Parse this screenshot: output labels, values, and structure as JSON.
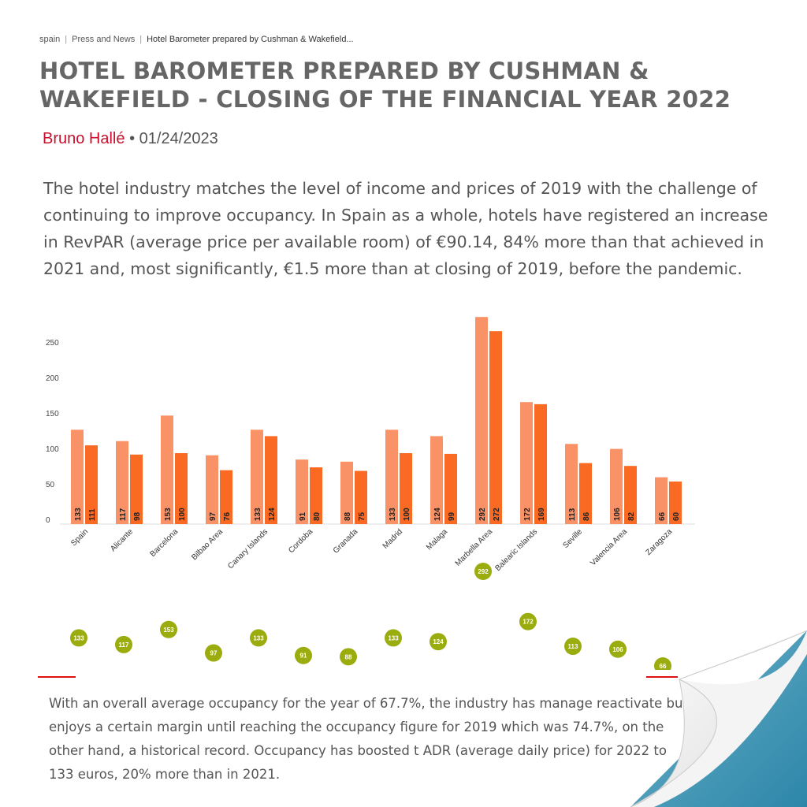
{
  "breadcrumb": {
    "items": [
      "spain",
      "Press and News"
    ],
    "current": "Hotel Barometer prepared by Cushman & Wakefield..."
  },
  "article": {
    "title": "HOTEL BAROMETER PREPARED BY CUSHMAN & WAKEFIELD - CLOSING OF THE FINANCIAL YEAR 2022",
    "author": "Bruno Hallé",
    "date": "• 01/24/2023",
    "lead": "The hotel industry matches the level of income and prices of 2019 with the challenge of continuing to improve occupancy. In Spain as a whole, hotels have registered an increase in RevPAR (average price per available room) of €90.14, 84% more than that achieved in 2021 and, most significantly, €1.5 more than at closing of 2019, before the pandemic.",
    "body": "With an overall average occupancy for the year of 67.7%, the industry has manage reactivate but enjoys a certain margin until reaching the occupancy figure for 2019 which was 74.7%, on the other hand, a historical record. Occupancy has boosted t ADR (average daily price) for 2022 to 133 euros, 20% more than in 2021."
  },
  "colors": {
    "series1": "#fa9268",
    "series2": "#fb6a22",
    "dot": "#9aac0e",
    "accent_red": "#c8102e"
  },
  "chart_data": [
    {
      "type": "bar",
      "categories": [
        "Spain",
        "Alicante",
        "Barcelona",
        "Bilbao Area",
        "Canary Islands",
        "Cordoba",
        "Granada",
        "Madrid",
        "Malaga",
        "Marbella Area",
        "Balearic Islands",
        "Seville",
        "Valencia Area",
        "Zaragoza"
      ],
      "series": [
        {
          "values": [
            133,
            117,
            153,
            97,
            133,
            91,
            88,
            133,
            124,
            292,
            172,
            113,
            106,
            66
          ]
        },
        {
          "values": [
            111,
            98,
            100,
            76,
            124,
            80,
            75,
            100,
            99,
            272,
            169,
            86,
            82,
            60
          ]
        }
      ],
      "yticks": [
        0,
        50,
        100,
        150,
        200,
        250
      ],
      "ylim": [
        0,
        290
      ],
      "data_labels": true,
      "grid": false,
      "legend": "none"
    },
    {
      "type": "scatter",
      "categories": [
        "Spain",
        "Alicante",
        "Barcelona",
        "Bilbao Area",
        "Canary Islands",
        "Cordoba",
        "Granada",
        "Madrid",
        "Malaga",
        "Marbella Area",
        "Balearic Islands",
        "Seville",
        "Valencia Area",
        "Zaragoza"
      ],
      "values": [
        133,
        117,
        153,
        97,
        133,
        91,
        88,
        133,
        124,
        292,
        172,
        113,
        106,
        66
      ],
      "data_labels": true
    }
  ]
}
